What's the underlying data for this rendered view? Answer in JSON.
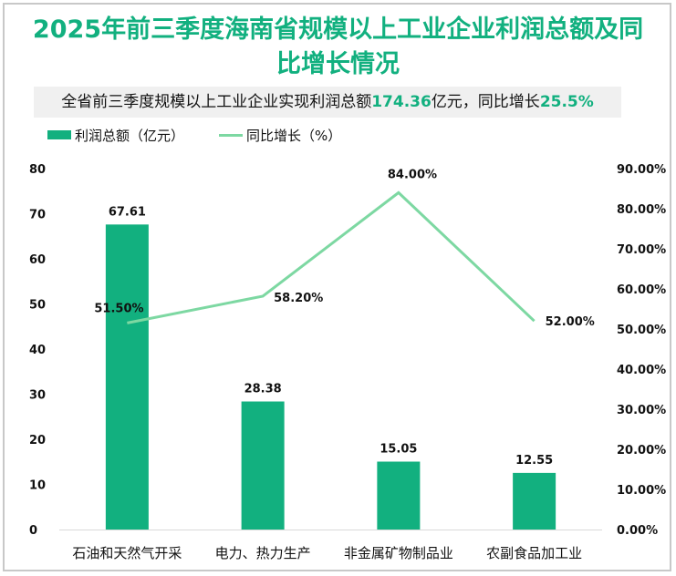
{
  "title_line1": "2025年前三季度海南省规模以上工业企业利润总额及同",
  "title_line2": "比增长情况",
  "subtitle": {
    "prefix": "全省前三季度规模以上工业企业实现利润总额",
    "value1": "174.36",
    "mid": "亿元，同比增长",
    "value2": "25.5%"
  },
  "legend": {
    "bar": "利润总额（亿元）",
    "line": "同比增长（%）"
  },
  "colors": {
    "bar": "#12b07f",
    "line": "#7dd8a2",
    "title": "#12b07f"
  },
  "chart_data": {
    "type": "bar+line",
    "title": "2025年前三季度海南省规模以上工业企业利润总额及同比增长情况",
    "subtitle": "全省前三季度规模以上工业企业实现利润总额174.36亿元，同比增长25.5%",
    "categories": [
      "石油和天然气开采",
      "电力、热力生产",
      "非金属矿物制品业",
      "农副食品加工业"
    ],
    "series": [
      {
        "name": "利润总额（亿元）",
        "type": "bar",
        "axis": "left",
        "values": [
          67.61,
          28.38,
          15.05,
          12.55
        ],
        "labels": [
          "67.61",
          "28.38",
          "15.05",
          "12.55"
        ]
      },
      {
        "name": "同比增长（%）",
        "type": "line",
        "axis": "right",
        "values": [
          51.5,
          58.2,
          84.0,
          52.0
        ],
        "labels": [
          "51.50%",
          "58.20%",
          "84.00%",
          "52.00%"
        ]
      }
    ],
    "left_axis": {
      "ylim": [
        0,
        80
      ],
      "ticks": [
        "0",
        "10",
        "20",
        "30",
        "40",
        "50",
        "60",
        "70",
        "80"
      ]
    },
    "right_axis": {
      "ylim": [
        0,
        90
      ],
      "ticks": [
        "0.00%",
        "10.00%",
        "20.00%",
        "30.00%",
        "40.00%",
        "50.00%",
        "60.00%",
        "70.00%",
        "80.00%",
        "90.00%"
      ]
    },
    "grid": false,
    "legend_position": "top-left"
  }
}
